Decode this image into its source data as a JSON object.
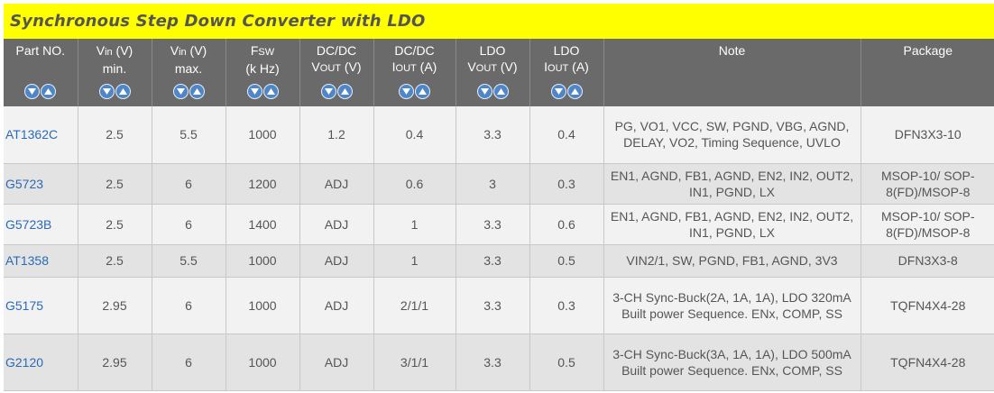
{
  "title": "Synchronous Step Down Converter with LDO",
  "columns": [
    {
      "line1": "Part NO.",
      "line2": ""
    },
    {
      "line1": "V",
      "sub1": "in",
      "after1": " (V)",
      "line2": "min."
    },
    {
      "line1": "V",
      "sub1": "in",
      "after1": " (V)",
      "line2": "max."
    },
    {
      "line1": "F",
      "sub1": "SW",
      "after1": "",
      "line2": "(k Hz)"
    },
    {
      "line1": "DC/DC",
      "line2": "V",
      "sub2": "OUT",
      "after2": " (V)"
    },
    {
      "line1": "DC/DC",
      "line2": "I",
      "sub2": "OUT",
      "after2": " (A)"
    },
    {
      "line1": "LDO",
      "line2": "V",
      "sub2": "OUT",
      "after2": " (V)"
    },
    {
      "line1": "LDO",
      "line2": "I",
      "sub2": "OUT",
      "after2": " (A)"
    },
    {
      "line1": "Note",
      "line2": ""
    },
    {
      "line1": "Package",
      "line2": ""
    }
  ],
  "rows": [
    {
      "part": "AT1362C",
      "vin_min": "2.5",
      "vin_max": "5.5",
      "fsw": "1000",
      "vout": "1.2",
      "iout": "0.4",
      "ldo_vout": "3.3",
      "ldo_iout": "0.4",
      "note": "PG, VO1, VCC, SW, PGND, VBG, AGND, DELAY, VO2, Timing Sequence, UVLO",
      "package": "DFN3X3-10"
    },
    {
      "part": "G5723",
      "vin_min": "2.5",
      "vin_max": "6",
      "fsw": "1200",
      "vout": "ADJ",
      "iout": "0.6",
      "ldo_vout": "3",
      "ldo_iout": "0.3",
      "note": "EN1, AGND, FB1, AGND, EN2, IN2, OUT2, IN1, PGND, LX",
      "package": "MSOP-10/ SOP-8(FD)/MSOP-8"
    },
    {
      "part": "G5723B",
      "vin_min": "2.5",
      "vin_max": "6",
      "fsw": "1400",
      "vout": "ADJ",
      "iout": "1",
      "ldo_vout": "3.3",
      "ldo_iout": "0.6",
      "note": "EN1, AGND, FB1, AGND, EN2, IN2, OUT2, IN1, PGND, LX",
      "package": "MSOP-10/ SOP-8(FD)/MSOP-8"
    },
    {
      "part": "AT1358",
      "vin_min": "2.5",
      "vin_max": "5.5",
      "fsw": "1000",
      "vout": "ADJ",
      "iout": "1",
      "ldo_vout": "3.3",
      "ldo_iout": "0.5",
      "note": "VIN2/1, SW, PGND, FB1, AGND, 3V3",
      "package": "DFN3X3-8"
    },
    {
      "part": "G5175",
      "vin_min": "2.95",
      "vin_max": "6",
      "fsw": "1000",
      "vout": "ADJ",
      "iout": "2/1/1",
      "ldo_vout": "3.3",
      "ldo_iout": "0.3",
      "note": "3-CH Sync-Buck(2A, 1A, 1A), LDO 320mA Built power Sequence. ENx, COMP, SS",
      "package": "TQFN4X4-28"
    },
    {
      "part": "G2120",
      "vin_min": "2.95",
      "vin_max": "6",
      "fsw": "1000",
      "vout": "ADJ",
      "iout": "3/1/1",
      "ldo_vout": "3.3",
      "ldo_iout": "0.5",
      "note": "3-CH Sync-Buck(3A, 1A, 1A), LDO 500mA Built power Sequence. ENx, COMP, SS",
      "package": "TQFN4X4-28"
    }
  ],
  "colors": {
    "title_bg": "#ffff00",
    "header_bg": "#6a6a6a",
    "link": "#2a6ab8",
    "sort_button": "#4f86c8"
  },
  "icons": {
    "sort_down": "sort-descending-icon",
    "sort_up": "sort-ascending-icon"
  }
}
